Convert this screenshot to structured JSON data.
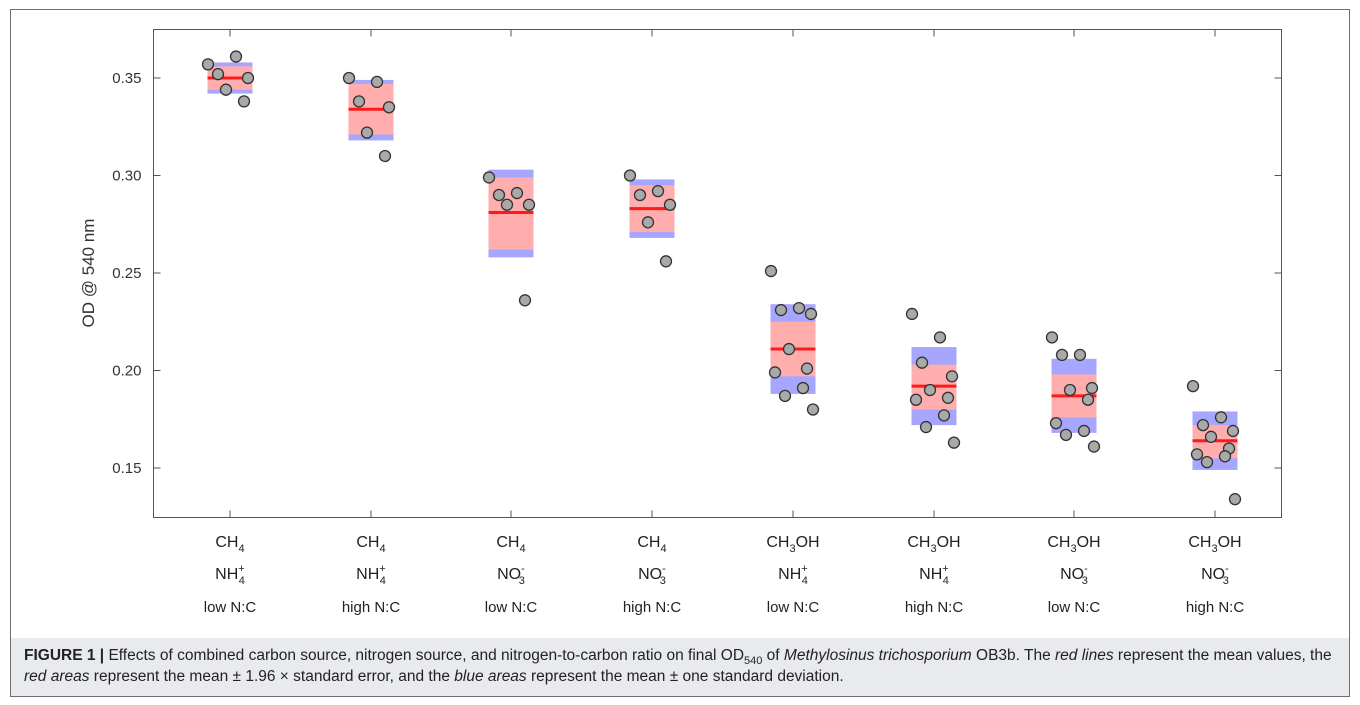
{
  "chart_data": {
    "type": "scatter",
    "ylabel": "OD @ 540 nm",
    "ylim": [
      0.125,
      0.377
    ],
    "yticks": [
      "0.15",
      "0.20",
      "0.25",
      "0.30",
      "0.35"
    ],
    "ytick_values": [
      0.15,
      0.2,
      0.25,
      0.3,
      0.35
    ],
    "grid": false,
    "colors": {
      "mean_line": "#ff1a1a",
      "se_area": "#ffadad",
      "sd_area": "#a6a6ff",
      "point_fill": "#a9a9a9",
      "point_edge": "#333333"
    },
    "groups": [
      {
        "line1": "CH",
        "line1_sub": "4",
        "line2": "NH",
        "line2_sub": "4",
        "line2_sup": "+",
        "line3": "low N:C",
        "mean": 0.35,
        "se": [
          0.344,
          0.356
        ],
        "sd": [
          0.342,
          0.358
        ],
        "points": [
          0.357,
          0.361,
          0.352,
          0.35,
          0.344,
          0.338
        ]
      },
      {
        "line1": "CH",
        "line1_sub": "4",
        "line2": "NH",
        "line2_sub": "4",
        "line2_sup": "+",
        "line3": "high N:C",
        "mean": 0.334,
        "se": [
          0.321,
          0.347
        ],
        "sd": [
          0.318,
          0.349
        ],
        "points": [
          0.35,
          0.348,
          0.338,
          0.335,
          0.322,
          0.31
        ]
      },
      {
        "line1": "CH",
        "line1_sub": "4",
        "line2": "NO",
        "line2_sub": "3",
        "line2_sup": "-",
        "line3": "low N:C",
        "mean": 0.281,
        "se": [
          0.262,
          0.299
        ],
        "sd": [
          0.258,
          0.303
        ],
        "points": [
          0.299,
          0.291,
          0.29,
          0.285,
          0.285,
          0.236
        ]
      },
      {
        "line1": "CH",
        "line1_sub": "4",
        "line2": "NO",
        "line2_sub": "3",
        "line2_sup": "-",
        "line3": "high N:C",
        "mean": 0.283,
        "se": [
          0.271,
          0.295
        ],
        "sd": [
          0.268,
          0.298
        ],
        "points": [
          0.3,
          0.292,
          0.29,
          0.285,
          0.276,
          0.256
        ]
      },
      {
        "line1": "CH",
        "line1_sub": "3",
        "line1_suffix": "OH",
        "line2": "NH",
        "line2_sub": "4",
        "line2_sup": "+",
        "line3": "low N:C",
        "mean": 0.211,
        "se": [
          0.197,
          0.225
        ],
        "sd": [
          0.188,
          0.234
        ],
        "points": [
          0.251,
          0.232,
          0.231,
          0.229,
          0.211,
          0.201,
          0.199,
          0.191,
          0.187,
          0.18
        ]
      },
      {
        "line1": "CH",
        "line1_sub": "3",
        "line1_suffix": "OH",
        "line2": "NH",
        "line2_sub": "4",
        "line2_sup": "+",
        "line3": "high N:C",
        "mean": 0.192,
        "se": [
          0.18,
          0.203
        ],
        "sd": [
          0.172,
          0.212
        ],
        "points": [
          0.229,
          0.217,
          0.204,
          0.197,
          0.19,
          0.186,
          0.185,
          0.177,
          0.171,
          0.163
        ]
      },
      {
        "line1": "CH",
        "line1_sub": "3",
        "line1_suffix": "OH",
        "line2": "NO",
        "line2_sub": "3",
        "line2_sup": "-",
        "line3": "low N:C",
        "mean": 0.187,
        "se": [
          0.176,
          0.198
        ],
        "sd": [
          0.168,
          0.206
        ],
        "points": [
          0.217,
          0.208,
          0.208,
          0.191,
          0.19,
          0.185,
          0.173,
          0.169,
          0.167,
          0.161
        ]
      },
      {
        "line1": "CH",
        "line1_sub": "3",
        "line1_suffix": "OH",
        "line2": "NO",
        "line2_sub": "3",
        "line2_sup": "-",
        "line3": "high N:C",
        "mean": 0.164,
        "se": [
          0.155,
          0.172
        ],
        "sd": [
          0.149,
          0.179
        ],
        "points": [
          0.192,
          0.176,
          0.172,
          0.169,
          0.166,
          0.16,
          0.157,
          0.156,
          0.153,
          0.134
        ]
      }
    ]
  },
  "caption": {
    "label": "FIGURE 1 |",
    "t1": " Effects of combined carbon source, nitrogen source, and nitrogen-to-carbon ratio on final OD",
    "t1_sub": "540",
    "t2": " of ",
    "species": "Methylosinus trichosporium",
    "t3": " OB3b. The ",
    "red_lines": "red lines",
    "t4": " represent the mean values, the ",
    "red_areas": "red areas",
    "t5": " represent the mean ± 1.96 × standard error, and the ",
    "blue_areas": "blue areas",
    "t6": " represent the mean ± one standard deviation."
  }
}
